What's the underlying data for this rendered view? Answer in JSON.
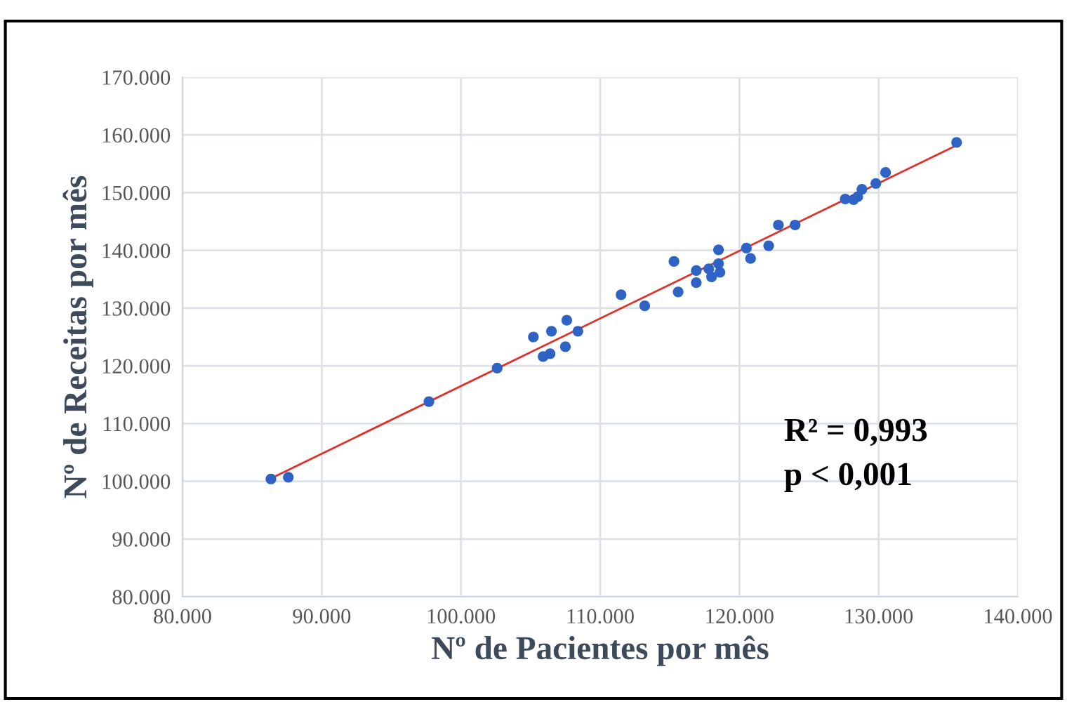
{
  "chart_data": {
    "type": "scatter",
    "xlabel": "Nº de Pacientes por mês",
    "ylabel": "Nº de Receitas por mês",
    "annotations": [
      "R² = 0,993",
      "p < 0,001"
    ],
    "series": [
      {
        "color": "#2e62c4",
        "marker": "circle",
        "x": [
          86350,
          87600,
          97700,
          102600,
          105200,
          105900,
          106400,
          106500,
          107500,
          107600,
          108400,
          111500,
          113200,
          115300,
          115600,
          116900,
          116900,
          117800,
          118000,
          118500,
          118500,
          118600,
          120500,
          120800,
          122100,
          122800,
          124000,
          127600,
          128200,
          128500,
          128800,
          129800,
          130500,
          135600
        ],
        "values": [
          100400,
          100700,
          113800,
          119600,
          125000,
          121600,
          122100,
          126000,
          123300,
          127900,
          126000,
          132300,
          130400,
          138100,
          132800,
          136500,
          134400,
          136800,
          135400,
          137700,
          140100,
          136200,
          140400,
          138600,
          140800,
          144400,
          144400,
          148900,
          148800,
          149300,
          150600,
          151600,
          153500,
          158700
        ]
      },
      {
        "type": "line",
        "color": "#e0302a",
        "marker": "none",
        "line_style": "solid",
        "x": [
          86350,
          135600
        ],
        "values": [
          100500,
          158200
        ]
      }
    ],
    "xlim": [
      80000,
      140000
    ],
    "ylim": [
      80000,
      170000
    ],
    "xticks": [
      {
        "value": 80000,
        "label": "80.000"
      },
      {
        "value": 90000,
        "label": "90.000"
      },
      {
        "value": 100000,
        "label": "100.000"
      },
      {
        "value": 110000,
        "label": "110.000"
      },
      {
        "value": 120000,
        "label": "120.000"
      },
      {
        "value": 130000,
        "label": "130.000"
      },
      {
        "value": 140000,
        "label": "140.000"
      }
    ],
    "yticks": [
      {
        "value": 80000,
        "label": "80.000"
      },
      {
        "value": 90000,
        "label": "90.000"
      },
      {
        "value": 100000,
        "label": "100.000"
      },
      {
        "value": 110000,
        "label": "110.000"
      },
      {
        "value": 120000,
        "label": "120.000"
      },
      {
        "value": 130000,
        "label": "130.000"
      },
      {
        "value": 140000,
        "label": "140.000"
      },
      {
        "value": 150000,
        "label": "150.000"
      },
      {
        "value": 160000,
        "label": "160.000"
      },
      {
        "value": 170000,
        "label": "170.000"
      }
    ],
    "grid": true,
    "legend": false
  }
}
